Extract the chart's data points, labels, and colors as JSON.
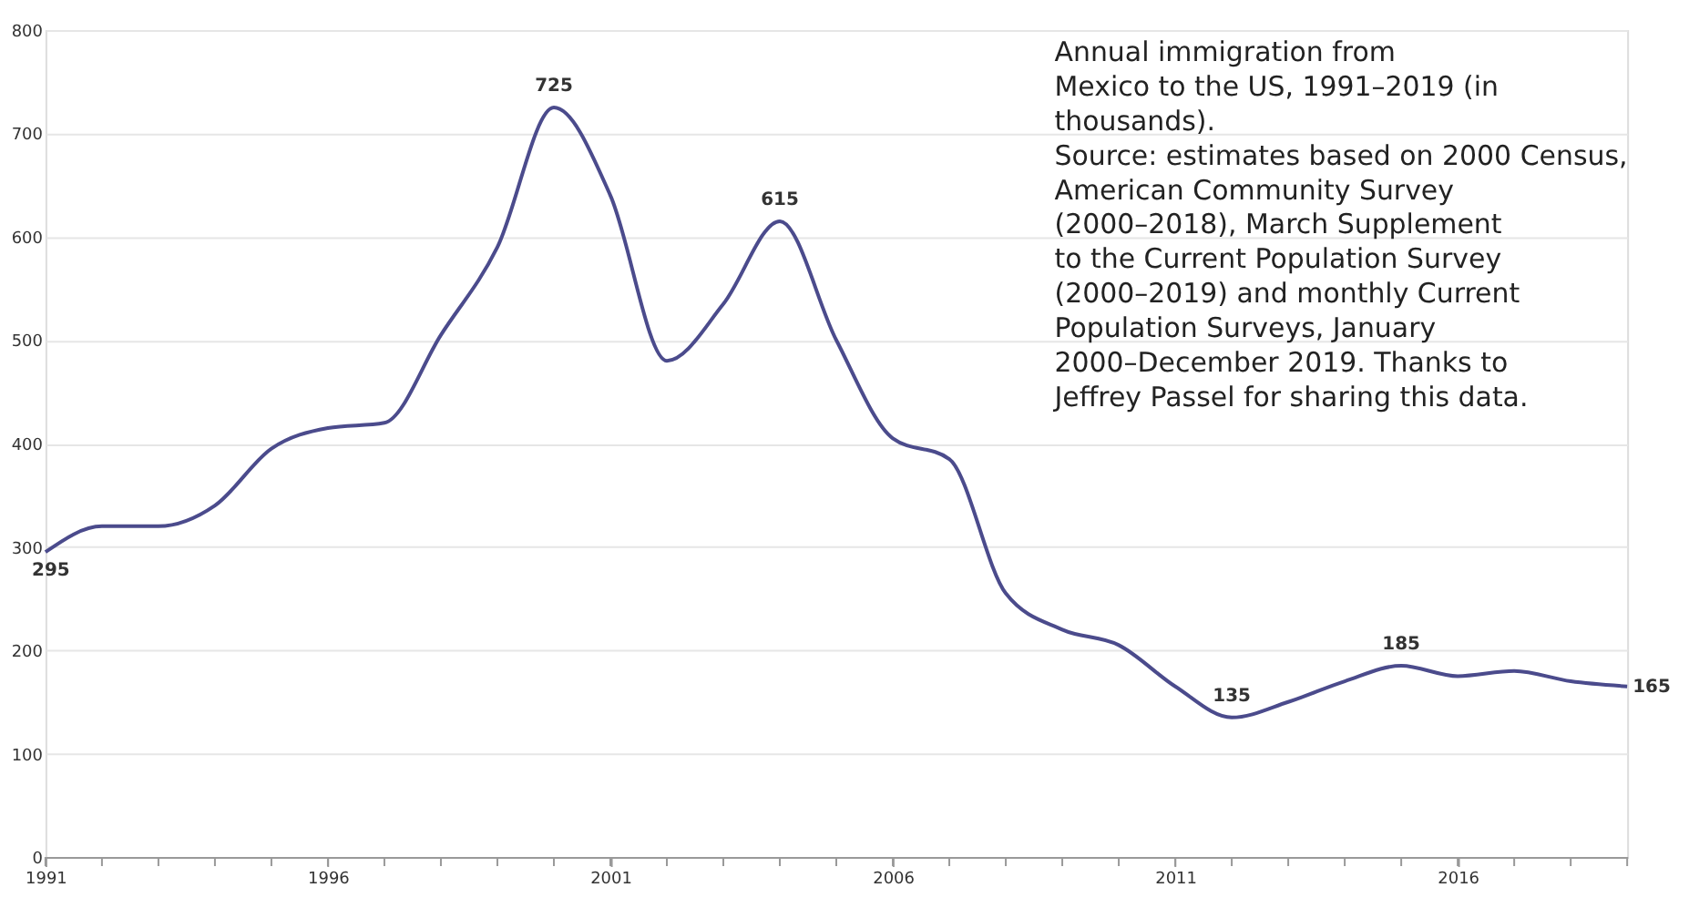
{
  "chart_data": {
    "type": "line",
    "x": [
      1991,
      1992,
      1993,
      1994,
      1995,
      1996,
      1997,
      1998,
      1999,
      2000,
      2001,
      2002,
      2003,
      2004,
      2005,
      2006,
      2007,
      2008,
      2009,
      2010,
      2011,
      2012,
      2013,
      2014,
      2015,
      2016,
      2017,
      2018,
      2019
    ],
    "series": [
      {
        "color": "#4b4b8c",
        "values": [
          295,
          320,
          320,
          340,
          395,
          415,
          420,
          505,
          590,
          725,
          640,
          480,
          535,
          615,
          500,
          405,
          385,
          255,
          220,
          205,
          165,
          135,
          150,
          170,
          185,
          175,
          180,
          170,
          165
        ],
        "value_labels": [
          "295",
          null,
          null,
          null,
          null,
          null,
          null,
          null,
          null,
          "725",
          null,
          null,
          null,
          "615",
          null,
          null,
          null,
          null,
          null,
          null,
          null,
          "135",
          null,
          null,
          "185",
          null,
          null,
          null,
          "165"
        ]
      }
    ],
    "xlim": [
      1991,
      2019
    ],
    "xticks": [
      1991,
      {
        "value": 1992,
        "label": null
      },
      {
        "value": 1993,
        "label": null
      },
      {
        "value": 1994,
        "label": null
      },
      {
        "value": 1995,
        "label": null
      },
      1996,
      {
        "value": 1997,
        "label": null
      },
      {
        "value": 1998,
        "label": null
      },
      {
        "value": 1999,
        "label": null
      },
      {
        "value": 2000,
        "label": null
      },
      2001,
      {
        "value": 2002,
        "label": null
      },
      {
        "value": 2003,
        "label": null
      },
      {
        "value": 2004,
        "label": null
      },
      {
        "value": 2005,
        "label": null
      },
      2006,
      {
        "value": 2007,
        "label": null
      },
      {
        "value": 2008,
        "label": null
      },
      {
        "value": 2009,
        "label": null
      },
      {
        "value": 2010,
        "label": null
      },
      2011,
      {
        "value": 2012,
        "label": null
      },
      {
        "value": 2013,
        "label": null
      },
      {
        "value": 2014,
        "label": null
      },
      {
        "value": 2015,
        "label": null
      },
      2016,
      {
        "value": 2017,
        "label": null
      },
      {
        "value": 2018,
        "label": null
      },
      {
        "value": 2019,
        "label": null
      }
    ],
    "ylim": [
      0,
      800
    ],
    "yticks": [
      0,
      100,
      200,
      300,
      400,
      500,
      600,
      700,
      800
    ],
    "grid": "y",
    "marker": "none",
    "line_style": "solid",
    "annotations": [
      "Annual immigration from\nMexico to the US, 1991–2019 (in\nthousands).\nSource: estimates based on 2000 Census,\nAmerican Community Survey\n(2000–2018), March Supplement\nto the Current Population Survey\n(2000–2019) and monthly Current\nPopulation Surveys, January\n2000–December 2019. Thanks to\nJeffrey Passel for sharing this data."
    ]
  }
}
